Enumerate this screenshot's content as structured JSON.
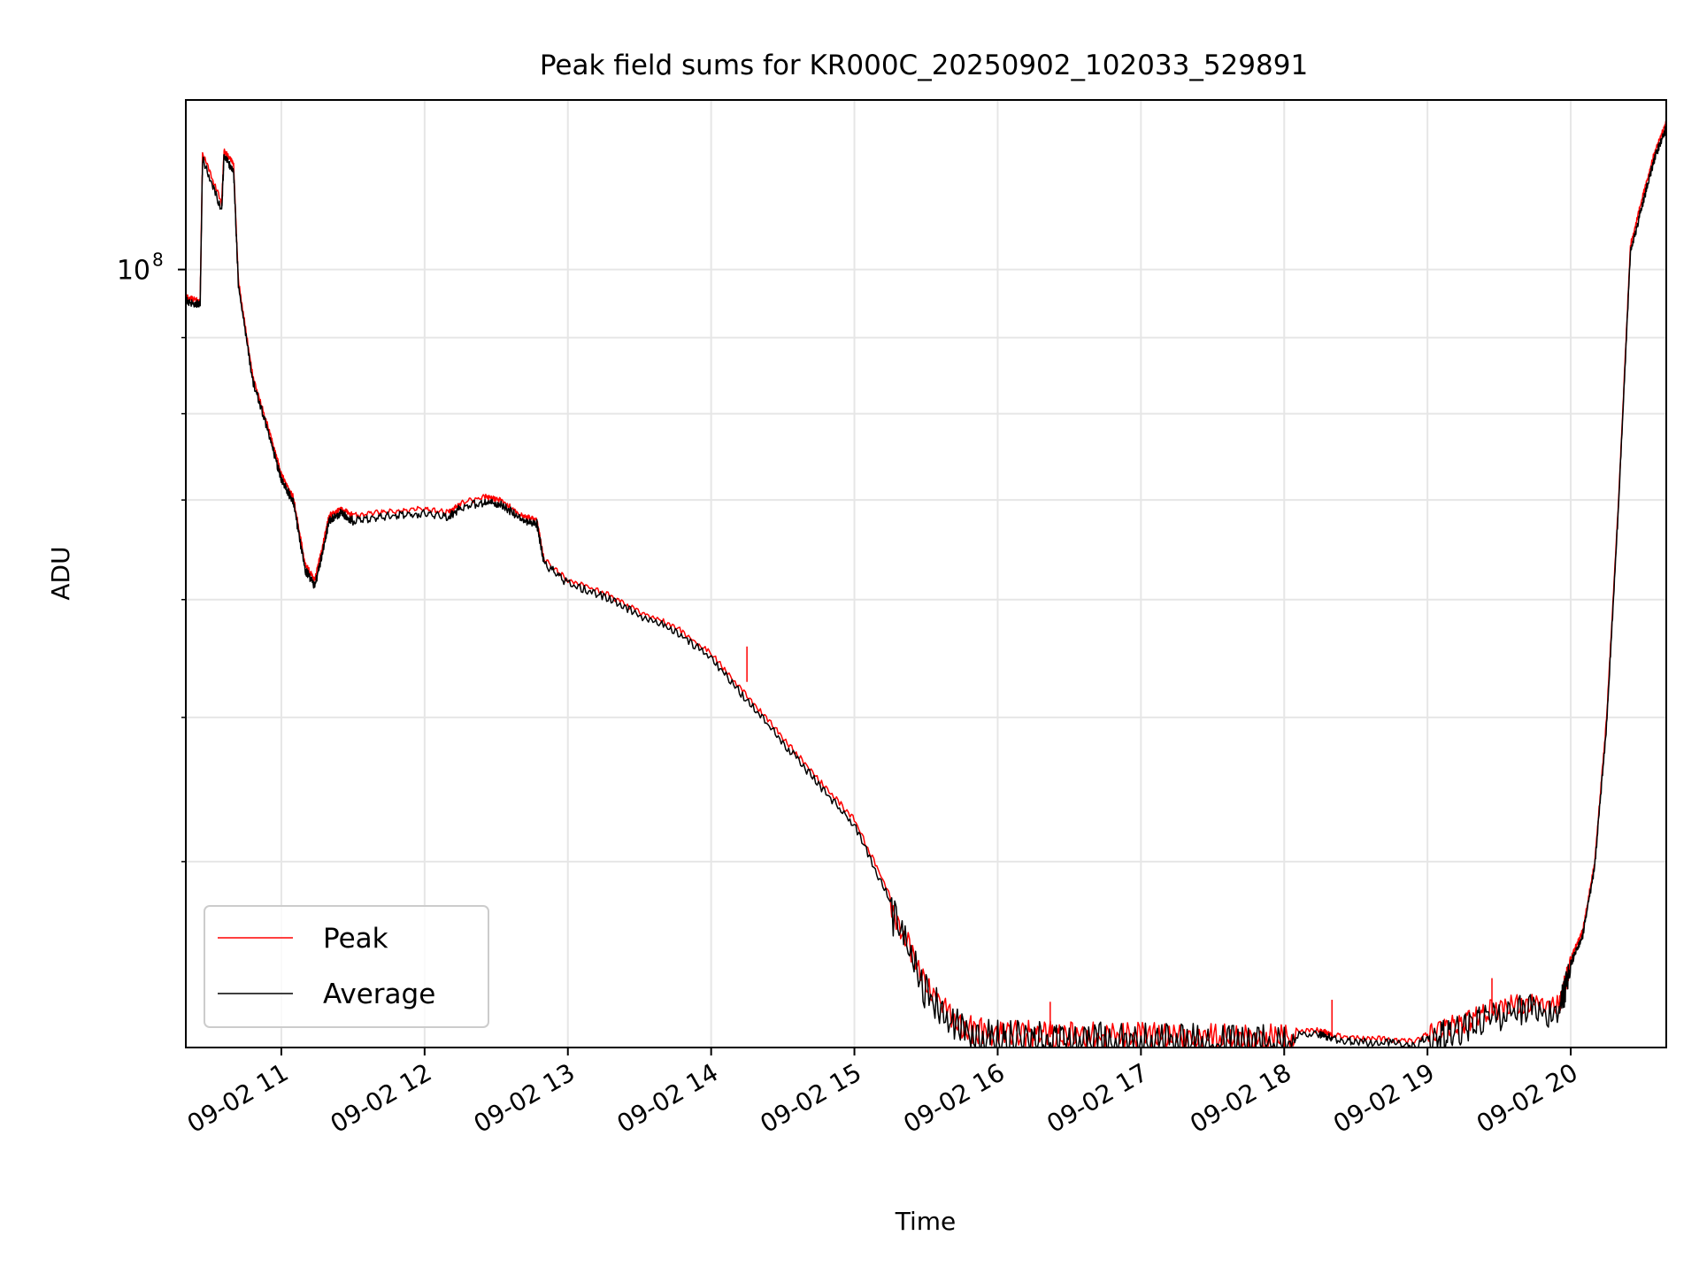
{
  "chart_data": {
    "type": "line",
    "title": "Peak field sums for KR000C_20250902_102033_529891",
    "xlabel": "Time",
    "ylabel": "ADU",
    "yscale": "log",
    "grid": true,
    "legend_position": "lower-left",
    "xlim": [
      "09-02 10:20",
      "09-02 20:40"
    ],
    "ylim": [
      30000000,
      130000000
    ],
    "xticks": [
      {
        "t": "09-02 11:00",
        "label": "09-02 11"
      },
      {
        "t": "09-02 12:00",
        "label": "09-02 12"
      },
      {
        "t": "09-02 13:00",
        "label": "09-02 13"
      },
      {
        "t": "09-02 14:00",
        "label": "09-02 14"
      },
      {
        "t": "09-02 15:00",
        "label": "09-02 15"
      },
      {
        "t": "09-02 16:00",
        "label": "09-02 16"
      },
      {
        "t": "09-02 17:00",
        "label": "09-02 17"
      },
      {
        "t": "09-02 18:00",
        "label": "09-02 18"
      },
      {
        "t": "09-02 19:00",
        "label": "09-02 19"
      },
      {
        "t": "09-02 20:00",
        "label": "09-02 20"
      }
    ],
    "yticks_major": [
      {
        "value": 100000000,
        "base": "10",
        "exp": "8"
      }
    ],
    "yticks_minor": [
      40000000,
      50000000,
      60000000,
      70000000,
      80000000,
      90000000
    ],
    "series": [
      {
        "name": "Peak",
        "color": "#ff0000",
        "points": [
          [
            "09-02 10:20",
            96000000
          ],
          [
            "09-02 10:26",
            95500000
          ],
          [
            "09-02 10:27",
            120000000
          ],
          [
            "09-02 10:35",
            111000000
          ],
          [
            "09-02 10:36",
            120500000
          ],
          [
            "09-02 10:40",
            118000000
          ],
          [
            "09-02 10:42",
            98500000
          ],
          [
            "09-02 10:48",
            85000000
          ],
          [
            "09-02 10:55",
            78000000
          ],
          [
            "09-02 11:00",
            73000000
          ],
          [
            "09-02 11:05",
            70500000
          ],
          [
            "09-02 11:10",
            63500000
          ],
          [
            "09-02 11:14",
            62000000
          ],
          [
            "09-02 11:17",
            65000000
          ],
          [
            "09-02 11:20",
            68500000
          ],
          [
            "09-02 11:25",
            69200000
          ],
          [
            "09-02 11:30",
            68500000
          ],
          [
            "09-02 11:40",
            68800000
          ],
          [
            "09-02 11:50",
            69000000
          ],
          [
            "09-02 12:00",
            69200000
          ],
          [
            "09-02 12:10",
            68800000
          ],
          [
            "09-02 12:15",
            69800000
          ],
          [
            "09-02 12:25",
            70500000
          ],
          [
            "09-02 12:32",
            70200000
          ],
          [
            "09-02 12:40",
            68500000
          ],
          [
            "09-02 12:47",
            68000000
          ],
          [
            "09-02 12:50",
            64000000
          ],
          [
            "09-02 13:00",
            62000000
          ],
          [
            "09-02 13:15",
            60800000
          ],
          [
            "09-02 13:30",
            59000000
          ],
          [
            "09-02 13:45",
            57700000
          ],
          [
            "09-02 14:00",
            55300000
          ],
          [
            "09-02 14:15",
            51800000
          ],
          [
            "09-02 14:30",
            48600000
          ],
          [
            "09-02 14:45",
            45500000
          ],
          [
            "09-02 15:00",
            42800000
          ],
          [
            "09-02 15:15",
            38000000
          ],
          [
            "09-02 15:30",
            33500000
          ],
          [
            "09-02 15:45",
            31300000
          ],
          [
            "09-02 16:00",
            30950000
          ],
          [
            "09-02 16:10",
            31000000
          ],
          [
            "09-02 16:20",
            30950000
          ],
          [
            "09-02 16:30",
            30900000
          ],
          [
            "09-02 16:45",
            30900000
          ],
          [
            "09-02 17:00",
            30850000
          ],
          [
            "09-02 17:15",
            30850000
          ],
          [
            "09-02 17:30",
            30800000
          ],
          [
            "09-02 17:45",
            30750000
          ],
          [
            "09-02 18:00",
            30850000
          ],
          [
            "09-02 18:15",
            30900000
          ],
          [
            "09-02 18:20",
            30650000
          ],
          [
            "09-02 18:30",
            30500000
          ],
          [
            "09-02 18:45",
            30450000
          ],
          [
            "09-02 18:55",
            30350000
          ],
          [
            "09-02 19:05",
            31200000
          ],
          [
            "09-02 19:15",
            31400000
          ],
          [
            "09-02 19:25",
            32000000
          ],
          [
            "09-02 19:40",
            32400000
          ],
          [
            "09-02 19:55",
            32300000
          ],
          [
            "09-02 20:00",
            34500000
          ],
          [
            "09-02 20:05",
            36000000
          ],
          [
            "09-02 20:10",
            40000000
          ],
          [
            "09-02 20:15",
            50000000
          ],
          [
            "09-02 20:20",
            70000000
          ],
          [
            "09-02 20:25",
            104000000
          ],
          [
            "09-02 20:30",
            112000000
          ],
          [
            "09-02 20:35",
            120000000
          ],
          [
            "09-02 20:40",
            126000000
          ]
        ]
      },
      {
        "name": "Average",
        "color": "#000000",
        "points": [
          [
            "09-02 10:20",
            95500000
          ],
          [
            "09-02 10:26",
            95000000
          ],
          [
            "09-02 10:27",
            119000000
          ],
          [
            "09-02 10:35",
            110000000
          ],
          [
            "09-02 10:36",
            119500000
          ],
          [
            "09-02 10:40",
            117000000
          ],
          [
            "09-02 10:42",
            98000000
          ],
          [
            "09-02 10:48",
            84500000
          ],
          [
            "09-02 10:55",
            77500000
          ],
          [
            "09-02 11:00",
            72500000
          ],
          [
            "09-02 11:05",
            70000000
          ],
          [
            "09-02 11:10",
            63000000
          ],
          [
            "09-02 11:14",
            61500000
          ],
          [
            "09-02 11:17",
            64500000
          ],
          [
            "09-02 11:20",
            68000000
          ],
          [
            "09-02 11:25",
            68800000
          ],
          [
            "09-02 11:30",
            68000000
          ],
          [
            "09-02 11:40",
            68400000
          ],
          [
            "09-02 11:50",
            68600000
          ],
          [
            "09-02 12:00",
            68800000
          ],
          [
            "09-02 12:10",
            68400000
          ],
          [
            "09-02 12:15",
            69400000
          ],
          [
            "09-02 12:25",
            70000000
          ],
          [
            "09-02 12:32",
            69800000
          ],
          [
            "09-02 12:40",
            68200000
          ],
          [
            "09-02 12:47",
            67700000
          ],
          [
            "09-02 12:50",
            63700000
          ],
          [
            "09-02 13:00",
            61700000
          ],
          [
            "09-02 13:15",
            60500000
          ],
          [
            "09-02 13:30",
            58700000
          ],
          [
            "09-02 13:45",
            57400000
          ],
          [
            "09-02 14:00",
            55000000
          ],
          [
            "09-02 14:15",
            51500000
          ],
          [
            "09-02 14:30",
            48300000
          ],
          [
            "09-02 14:45",
            45200000
          ],
          [
            "09-02 15:00",
            42500000
          ],
          [
            "09-02 15:15",
            37700000
          ],
          [
            "09-02 15:30",
            33200000
          ],
          [
            "09-02 15:45",
            31100000
          ],
          [
            "09-02 16:00",
            30800000
          ],
          [
            "09-02 16:10",
            30850000
          ],
          [
            "09-02 16:20",
            30750000
          ],
          [
            "09-02 16:30",
            30700000
          ],
          [
            "09-02 16:45",
            30700000
          ],
          [
            "09-02 17:00",
            30650000
          ],
          [
            "09-02 17:15",
            30650000
          ],
          [
            "09-02 17:30",
            30600000
          ],
          [
            "09-02 17:45",
            30550000
          ],
          [
            "09-02 18:00",
            30700000
          ],
          [
            "09-02 18:15",
            30750000
          ],
          [
            "09-02 18:20",
            30500000
          ],
          [
            "09-02 18:30",
            30350000
          ],
          [
            "09-02 18:45",
            30300000
          ],
          [
            "09-02 18:55",
            30200000
          ],
          [
            "09-02 19:05",
            31000000
          ],
          [
            "09-02 19:15",
            31200000
          ],
          [
            "09-02 19:25",
            31800000
          ],
          [
            "09-02 19:40",
            32200000
          ],
          [
            "09-02 19:55",
            32100000
          ],
          [
            "09-02 20:00",
            34300000
          ],
          [
            "09-02 20:05",
            35800000
          ],
          [
            "09-02 20:10",
            39800000
          ],
          [
            "09-02 20:15",
            49500000
          ],
          [
            "09-02 20:20",
            69500000
          ],
          [
            "09-02 20:25",
            103000000
          ],
          [
            "09-02 20:30",
            111000000
          ],
          [
            "09-02 20:35",
            119000000
          ],
          [
            "09-02 20:40",
            125000000
          ]
        ]
      }
    ],
    "annotations": [
      {
        "series": "Peak",
        "t": "09-02 14:15",
        "value": 55800000,
        "note": "spike"
      },
      {
        "series": "Peak",
        "t": "09-02 16:22",
        "value": 32200000,
        "note": "spike"
      },
      {
        "series": "Peak",
        "t": "09-02 18:20",
        "value": 32300000,
        "note": "spike"
      },
      {
        "series": "Peak",
        "t": "09-02 19:27",
        "value": 33400000,
        "note": "spike"
      }
    ]
  }
}
